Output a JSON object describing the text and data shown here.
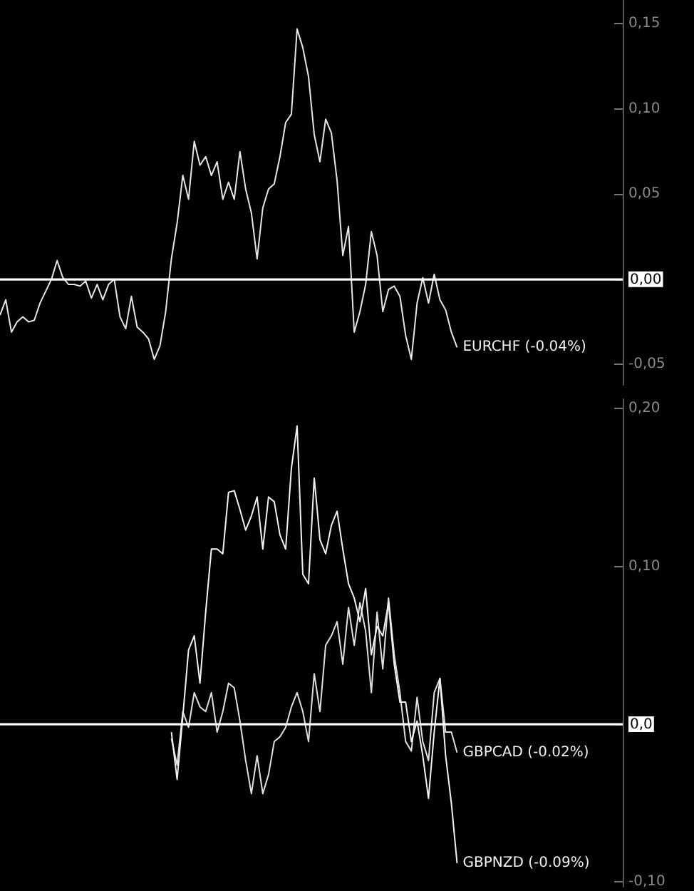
{
  "chart_data": [
    {
      "type": "line",
      "categories": [
        null,
        null,
        null,
        null,
        null,
        null,
        null,
        null,
        null,
        null,
        null,
        null,
        null,
        null,
        null,
        null,
        null,
        null,
        null,
        null,
        null,
        null,
        null,
        null,
        null,
        null,
        null,
        null,
        null,
        null,
        null,
        null,
        null,
        null,
        null,
        null,
        null,
        null,
        null,
        null,
        null,
        null,
        null,
        null,
        null,
        null,
        null,
        null,
        null,
        null,
        null,
        null,
        null,
        null,
        null,
        null,
        null,
        null,
        null,
        null,
        null,
        null,
        null,
        null,
        null,
        null,
        null,
        null,
        null,
        null,
        null,
        null,
        null,
        null,
        null,
        null,
        null,
        null,
        null,
        null,
        null,
        null,
        null,
        null,
        null,
        null,
        null,
        null,
        null,
        null,
        null,
        null,
        null,
        null,
        null,
        null,
        null,
        null,
        null,
        null,
        null,
        null,
        null,
        null,
        null,
        null,
        null,
        null,
        null,
        null
      ],
      "series": [
        {
          "name": "EURCHF (-0.04%)",
          "color": "#e6e6e6",
          "values": [
            -0.021,
            -0.012,
            -0.031,
            -0.025,
            -0.022,
            -0.025,
            -0.024,
            -0.014,
            -0.007,
            0.0,
            0.011,
            0.001,
            -0.003,
            -0.003,
            -0.004,
            -0.001,
            -0.011,
            -0.003,
            -0.012,
            -0.003,
            0.0,
            -0.022,
            -0.029,
            -0.01,
            -0.028,
            -0.031,
            -0.035,
            -0.047,
            -0.039,
            -0.019,
            0.012,
            0.033,
            0.061,
            0.047,
            0.081,
            0.067,
            0.072,
            0.061,
            0.069,
            0.047,
            0.057,
            0.047,
            0.075,
            0.053,
            0.039,
            0.012,
            0.042,
            0.053,
            0.056,
            0.072,
            0.092,
            0.097,
            0.147,
            0.136,
            0.119,
            0.085,
            0.069,
            0.094,
            0.086,
            0.058,
            0.014,
            0.031,
            -0.031,
            -0.019,
            -0.003,
            0.028,
            0.014,
            -0.019,
            -0.006,
            -0.004,
            -0.01,
            -0.033,
            -0.047,
            -0.014,
            0.001,
            -0.014,
            0.003,
            -0.012,
            -0.018,
            -0.031,
            -0.04,
            null,
            null,
            null,
            null,
            null,
            null,
            null,
            null,
            null,
            null,
            null,
            null,
            null,
            null,
            null,
            null,
            null,
            null,
            null,
            null,
            null,
            null,
            null,
            null,
            null,
            null,
            null,
            null,
            null
          ]
        }
      ],
      "ylim": [
        -0.062,
        0.164
      ],
      "yticks": [
        {
          "value": -0.05,
          "label": "-0,05"
        },
        {
          "value": 0,
          "label": "0,00"
        },
        {
          "value": 0.05,
          "label": "0,05"
        },
        {
          "value": 0.1,
          "label": "0,10"
        },
        {
          "value": 0.15,
          "label": "0,15"
        }
      ],
      "ref_lines": [
        {
          "axis": "y",
          "value": 0,
          "color": "#ffffff"
        }
      ],
      "tick_labels": "y",
      "line_style": "solid",
      "grid": false
    },
    {
      "type": "line",
      "categories": [
        null,
        null,
        null,
        null,
        null,
        null,
        null,
        null,
        null,
        null,
        null,
        null,
        null,
        null,
        null,
        null,
        null,
        null,
        null,
        null,
        null,
        null,
        null,
        null,
        null,
        null,
        null,
        null,
        null,
        null,
        null,
        null,
        null,
        null,
        null,
        null,
        null,
        null,
        null,
        null,
        null,
        null,
        null,
        null,
        null,
        null,
        null,
        null,
        null,
        null,
        null,
        null,
        null,
        null,
        null,
        null,
        null,
        null,
        null,
        null,
        null,
        null,
        null,
        null,
        null,
        null,
        null,
        null,
        null,
        null,
        null,
        null,
        null,
        null,
        null,
        null,
        null,
        null,
        null,
        null,
        null,
        null,
        null,
        null,
        null,
        null,
        null,
        null,
        null,
        null,
        null,
        null,
        null,
        null,
        null,
        null,
        null,
        null,
        null,
        null,
        null,
        null,
        null,
        null,
        null,
        null,
        null,
        null,
        null,
        null
      ],
      "series": [
        {
          "name": "GBPCAD (-0.02%)",
          "color": "#e0e0e0",
          "values": [
            null,
            null,
            null,
            null,
            null,
            null,
            null,
            null,
            null,
            null,
            null,
            null,
            null,
            null,
            null,
            null,
            null,
            null,
            null,
            null,
            null,
            null,
            null,
            null,
            null,
            null,
            null,
            null,
            null,
            null,
            -0.009,
            -0.026,
            0.008,
            -0.002,
            0.02,
            0.011,
            0.008,
            0.02,
            -0.005,
            0.008,
            0.026,
            0.023,
            0.002,
            -0.023,
            -0.044,
            -0.02,
            -0.044,
            -0.032,
            -0.011,
            -0.008,
            -0.002,
            0.011,
            0.02,
            0.008,
            -0.011,
            0.032,
            0.008,
            0.05,
            0.056,
            0.065,
            0.038,
            0.074,
            0.05,
            0.077,
            0.059,
            0.02,
            0.071,
            0.035,
            0.08,
            0.044,
            0.02,
            -0.011,
            -0.017,
            0.017,
            -0.011,
            -0.023,
            0.02,
            0.029,
            -0.005,
            -0.005,
            -0.018,
            null,
            null,
            null,
            null,
            null,
            null,
            null,
            null,
            null,
            null,
            null,
            null,
            null,
            null,
            null,
            null,
            null,
            null,
            null,
            null,
            null,
            null,
            null,
            null,
            null,
            null,
            null,
            null,
            null
          ]
        },
        {
          "name": "GBPNZD (-0.09%)",
          "color": "#f2f2f2",
          "values": [
            null,
            null,
            null,
            null,
            null,
            null,
            null,
            null,
            null,
            null,
            null,
            null,
            null,
            null,
            null,
            null,
            null,
            null,
            null,
            null,
            null,
            null,
            null,
            null,
            null,
            null,
            null,
            null,
            null,
            null,
            -0.005,
            -0.035,
            0.005,
            0.047,
            0.056,
            0.026,
            0.071,
            0.111,
            0.111,
            0.108,
            0.147,
            0.148,
            0.136,
            0.123,
            0.132,
            0.144,
            0.111,
            0.144,
            0.141,
            0.12,
            0.111,
            0.162,
            0.189,
            0.095,
            0.089,
            0.156,
            0.117,
            0.108,
            0.126,
            0.135,
            0.111,
            0.089,
            0.08,
            0.065,
            0.086,
            0.044,
            0.062,
            0.056,
            0.077,
            0.038,
            0.014,
            0.014,
            -0.011,
            0.002,
            -0.02,
            -0.047,
            -0.005,
            0.029,
            -0.02,
            -0.05,
            -0.088,
            null,
            null,
            null,
            null,
            null,
            null,
            null,
            null,
            null,
            null,
            null,
            null,
            null,
            null,
            null,
            null,
            null,
            null,
            null,
            null,
            null,
            null,
            null,
            null,
            null,
            null,
            null,
            null,
            null
          ]
        }
      ],
      "ylim": [
        -0.103,
        0.206
      ],
      "yticks": [
        {
          "value": -0.1,
          "label": "-0,10"
        },
        {
          "value": 0,
          "label": "0,0"
        },
        {
          "value": 0.1,
          "label": "0,10"
        },
        {
          "value": 0.2,
          "label": "0,20"
        }
      ],
      "ref_lines": [
        {
          "axis": "y",
          "value": 0,
          "color": "#ffffff"
        }
      ],
      "tick_labels": "y",
      "line_style": "solid",
      "grid": false
    }
  ]
}
